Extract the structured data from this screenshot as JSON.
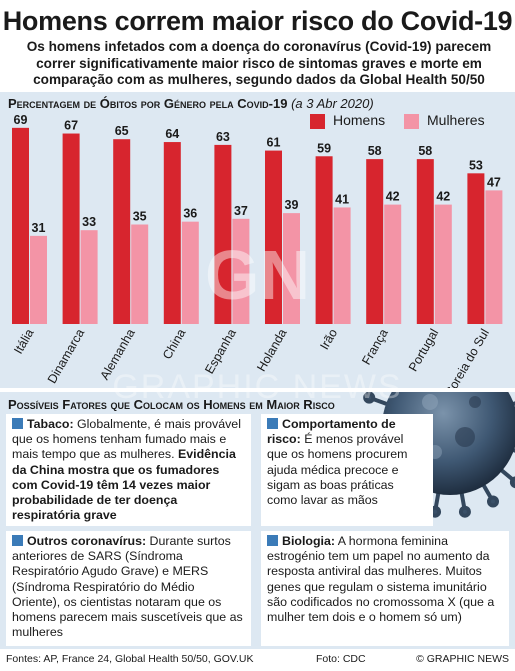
{
  "header": {
    "title": "Homens correm maior risco do Covid-19",
    "subtitle": "Os homens infetados com a doença do coronavírus (Covid-19) parecem correr significativamente maior risco de sintomas graves e morte em comparação com as mulheres, segundo dados da Global Health 50/50"
  },
  "chart_data": {
    "type": "bar",
    "title": "Percentagem de Óbitos por Género pela Covid-19",
    "date_note": "(a 3 Abr 2020)",
    "categories": [
      "Itália",
      "Dinamarca",
      "Alemanha",
      "China",
      "Espanha",
      "Holanda",
      "Irão",
      "França",
      "Portugal",
      "Coreia do Sul"
    ],
    "series": [
      {
        "name": "Homens",
        "color": "#d7252e",
        "values": [
          69,
          67,
          65,
          64,
          63,
          61,
          59,
          58,
          58,
          53
        ]
      },
      {
        "name": "Mulheres",
        "color": "#f394a6",
        "values": [
          31,
          33,
          35,
          36,
          37,
          39,
          41,
          42,
          42,
          47
        ]
      }
    ],
    "ylim": [
      0,
      70
    ],
    "legend": "top-right",
    "grid": false
  },
  "factors": {
    "heading": "Possíveis Fatores que Colocam os Homens em Maior Risco",
    "tabaco": {
      "head": "Tabaco:",
      "text": " Globalmente, é mais provável que os homens tenham fumado mais e mais tempo que as mulheres.",
      "strong": "Evidência da China mostra que os fumadores com Covid-19 têm 14 vezes maior probabilidade de ter doença respiratória grave"
    },
    "comportamento": {
      "head": "Comportamento de risco:",
      "text": " É menos provável que os homens procurem ajuda médica precoce e sigam as boas práticas como lavar as mãos"
    },
    "outros": {
      "head": "Outros coronavírus:",
      "text": " Durante surtos anteriores de SARS (Síndroma Respiratório Agudo Grave) e MERS (Síndroma Respiratório do Médio Oriente), os cientistas notaram que os homens parecem mais suscetíveis que as mulheres"
    },
    "biologia": {
      "head": "Biologia:",
      "text": " A hormona feminina estrogénio tem um papel no aumento da resposta antiviral das mulheres. Muitos genes que regulam o sistema imunitário são codificados no cromossoma X (que a mulher tem dois e o homem só um)"
    }
  },
  "footer": {
    "sources": "Fontes: AP, France 24, Global Health 50/50, GOV.UK",
    "photo": "Foto: CDC",
    "copyright": "© GRAPHIC NEWS"
  },
  "watermark": {
    "logo": "GN",
    "text": "GRAPHIC NEWS"
  }
}
